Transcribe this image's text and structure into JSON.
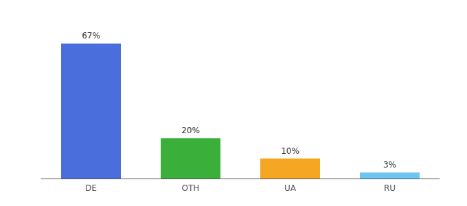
{
  "chart_data": {
    "type": "bar",
    "categories": [
      "DE",
      "OTH",
      "UA",
      "RU"
    ],
    "values": [
      67,
      20,
      10,
      3
    ],
    "value_labels": [
      "67%",
      "20%",
      "10%",
      "3%"
    ],
    "colors": [
      "#4a6edb",
      "#3ab03a",
      "#f5a623",
      "#6ec6f0"
    ],
    "ylim": [
      0,
      75
    ],
    "data_labels": true,
    "tick_labels": "x",
    "grid": false
  }
}
